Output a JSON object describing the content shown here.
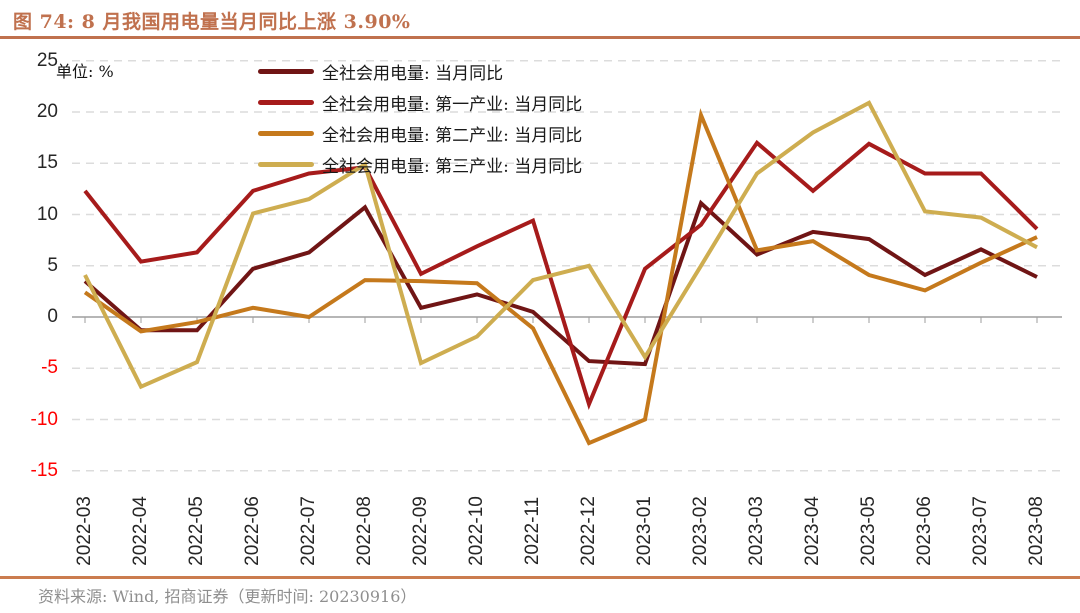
{
  "page": {
    "title": "图 74:  8 月我国用电量当月同比上涨 3.90%",
    "source_note": "资料来源:  Wind, 招商证券（更新时间:  20230916）"
  },
  "chart_data": {
    "type": "line",
    "title": "图 74: 8 月我国用电量当月同比上涨 3.90%",
    "unit_label": "单位:  %",
    "xlabel": "",
    "ylabel": "%",
    "categories": [
      "2022-03",
      "2022-04",
      "2022-05",
      "2022-06",
      "2022-07",
      "2022-08",
      "2022-09",
      "2022-10",
      "2022-11",
      "2022-12",
      "2023-01",
      "2023-02",
      "2023-03",
      "2023-04",
      "2023-05",
      "2023-06",
      "2023-07",
      "2023-08"
    ],
    "series": [
      {
        "name": "全社会用电量: 当月同比",
        "color": "#701515",
        "values": [
          3.5,
          -1.3,
          -1.3,
          4.7,
          6.3,
          10.7,
          0.9,
          2.2,
          0.5,
          -4.3,
          -4.6,
          11.1,
          6.1,
          8.3,
          7.6,
          4.1,
          6.6,
          3.9
        ]
      },
      {
        "name": "全社会用电量: 第一产业: 当月同比",
        "color": "#A61B1B",
        "values": [
          12.3,
          5.4,
          6.3,
          12.3,
          14.0,
          14.6,
          4.2,
          6.9,
          9.4,
          -8.5,
          4.7,
          9.0,
          17.0,
          12.3,
          16.9,
          14.0,
          14.0,
          8.6
        ]
      },
      {
        "name": "全社会用电量: 第二产业: 当月同比",
        "color": "#C5791C",
        "values": [
          2.4,
          -1.4,
          -0.5,
          0.9,
          0.0,
          3.6,
          3.5,
          3.3,
          -1.1,
          -12.3,
          -10.0,
          19.7,
          6.5,
          7.4,
          4.1,
          2.6,
          5.3,
          7.8
        ]
      },
      {
        "name": "全社会用电量: 第三产业: 当月同比",
        "color": "#CEAD50",
        "values": [
          4.1,
          -6.8,
          -4.4,
          10.1,
          11.5,
          14.9,
          -4.5,
          -1.9,
          3.6,
          5.0,
          -3.9,
          5.0,
          14.0,
          18.0,
          20.9,
          10.3,
          9.7,
          6.8
        ]
      }
    ],
    "ylim": [
      -15,
      25
    ],
    "yticks": [
      25,
      20,
      15,
      10,
      5,
      0,
      -5,
      -10,
      -15
    ],
    "grid": "horizontal-dashed",
    "legend_position": "top-center",
    "negative_tick_label_color": "#FF0000",
    "positive_tick_label_color": "#262626"
  },
  "colors": {
    "title_accent": "#C0714E",
    "rule_bottom": "#CB7C4F",
    "grid": "#DCDCDC",
    "axis": "#9E9E9E",
    "source_text": "#8F8F8F"
  }
}
